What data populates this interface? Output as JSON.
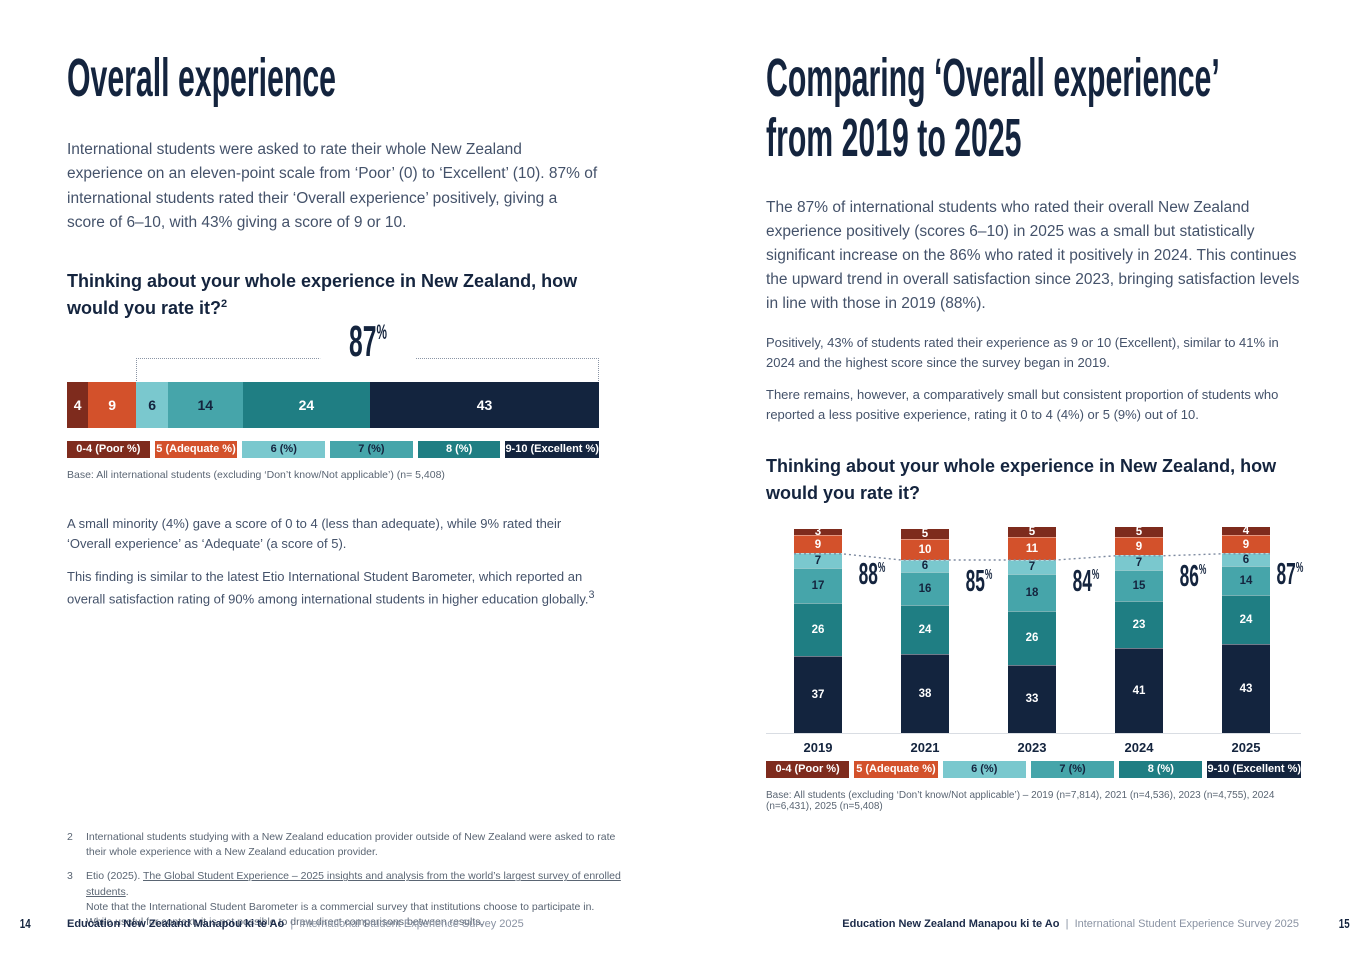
{
  "left_page": {
    "title": "Overall experience",
    "intro": "International students were asked to rate their whole New Zealand experience on an eleven-point scale from ‘Poor’ (0) to ‘Excellent’ (10). 87% of international students rated their ‘Overall experience’ positively, giving a score of 6–10, with 43% giving a score of 9 or 10.",
    "question": "Thinking about your whole experience in New Zealand, how would you rate it?",
    "question_sup": "2",
    "para1": "A small minority (4%) gave a score of 0 to 4 (less than adequate), while 9% rated their ‘Overall experience’ as ‘Adequate’ (a score of 5).",
    "para2": "This finding is similar to the latest Etio International Student Barometer, which reported an overall satisfaction rating of 90% among international students in higher education globally.",
    "para2_sup": "3"
  },
  "right_page": {
    "title_line1": "Comparing ‘Overall experience’",
    "title_line2": "from 2019 to 2025",
    "intro": "The 87% of international students who rated their overall New Zealand experience positively (scores 6–10) in 2025 was a small but statistically significant increase on the 86% who rated it positively in 2024. This continues the upward trend in overall satisfaction since 2023, bringing satisfaction levels in line with those in 2019 (88%).",
    "para1": "Positively, 43% of students rated their experience as 9 or 10 (Excellent), similar to 41% in 2024 and the highest score since the survey began in 2019.",
    "para2": "There remains, however, a comparatively small but consistent proportion of students who reported a less positive experience, rating it 0 to 4 (4%) or 5 (9%) out of 10.",
    "question": "Thinking about your whole experience in New Zealand, how would you rate it?"
  },
  "legend": [
    {
      "label": "0-4 (Poor %)",
      "bg": "#7E2B1D",
      "fg": "#FFFFFF"
    },
    {
      "label": "5 (Adequate %)",
      "bg": "#D3512B",
      "fg": "#FFFFFF"
    },
    {
      "label": "6 (%)",
      "bg": "#7AC8CE",
      "fg": "#14243E"
    },
    {
      "label": "7 (%)",
      "bg": "#46A5AA",
      "fg": "#14243E"
    },
    {
      "label": "8 (%)",
      "bg": "#1F7E83",
      "fg": "#FFFFFF"
    },
    {
      "label": "9-10 (Excellent %)",
      "bg": "#13243E",
      "fg": "#FFFFFF"
    }
  ],
  "chart_data": [
    {
      "type": "bar",
      "orientation": "horizontal-stacked",
      "title": "Thinking about your whole experience in New Zealand, how would you rate it?",
      "categories": [
        "0-4 (Poor %)",
        "5 (Adequate %)",
        "6 (%)",
        "7 (%)",
        "8 (%)",
        "9-10 (Excellent %)"
      ],
      "values": [
        4,
        9,
        6,
        14,
        24,
        43
      ],
      "annotation_value": "87",
      "annotation_unit": "%",
      "annotation_meaning": "share rating 6-10 (positive)",
      "base": "Base: All international students (excluding ‘Don’t know/Not applicable’) (n= 5,408)"
    },
    {
      "type": "bar",
      "orientation": "vertical-stacked",
      "title": "Thinking about your whole experience in New Zealand, how would you rate it?",
      "categories": [
        "2019",
        "2021",
        "2023",
        "2024",
        "2025"
      ],
      "series": [
        {
          "name": "0-4 (Poor %)",
          "values": [
            3,
            5,
            5,
            5,
            4
          ]
        },
        {
          "name": "5 (Adequate %)",
          "values": [
            9,
            10,
            11,
            9,
            9
          ]
        },
        {
          "name": "6 (%)",
          "values": [
            7,
            6,
            7,
            7,
            6
          ]
        },
        {
          "name": "7 (%)",
          "values": [
            17,
            16,
            18,
            15,
            14
          ]
        },
        {
          "name": "8 (%)",
          "values": [
            26,
            24,
            26,
            23,
            24
          ]
        },
        {
          "name": "9-10 (Excellent %)",
          "values": [
            37,
            38,
            33,
            41,
            43
          ]
        }
      ],
      "positive_totals": [
        88,
        85,
        84,
        86,
        87
      ],
      "ylim": [
        0,
        100
      ],
      "legend_position": "bottom",
      "base": "Base: All students (excluding ‘Don’t know/Not applicable’) – 2019 (n=7,814), 2021 (n=4,536), 2023 (n=4,755), 2024 (n=6,431), 2025 (n=5,408)"
    }
  ],
  "footnotes": [
    {
      "num": "2",
      "text": "International students studying with a New Zealand education provider outside of New Zealand were asked to rate their whole experience with a New Zealand education provider."
    },
    {
      "num": "3",
      "prefix": "Etio (2025). ",
      "link": "The Global Student Experience – 2025 insights and analysis from the world’s largest survey of enrolled students",
      "suffix": ".",
      "line2": "Note that the International Student Barometer is a commercial survey that institutions choose to participate in.",
      "line3": "While useful for context, it is not possible to draw direct comparisons between results."
    }
  ],
  "footer": {
    "page_left": "14",
    "page_right": "15",
    "brand": "Education New Zealand Manapou ki te Ao",
    "divider": "|",
    "survey": "International Student Experience Survey 2025"
  }
}
